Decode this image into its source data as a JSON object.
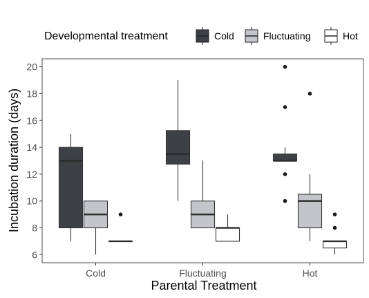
{
  "chart_data": {
    "type": "box",
    "title": "",
    "xlabel": "Parental Treatment",
    "ylabel": "Incubation duration (days)",
    "ylim": [
      5.4,
      20.6
    ],
    "yticks": [
      6,
      8,
      10,
      12,
      14,
      16,
      18,
      20
    ],
    "grid": false,
    "legend": {
      "title": "Developmental treatment",
      "position": "top",
      "entries": [
        "Cold",
        "Fluctuating",
        "Hot"
      ]
    },
    "categories": [
      "Cold",
      "Fluctuating",
      "Hot"
    ],
    "series": [
      {
        "name": "Cold",
        "color": "#3d4145",
        "boxes": [
          {
            "category": "Cold",
            "lower_whisker": 7,
            "q1": 8,
            "median": 13,
            "q3": 14,
            "upper_whisker": 15,
            "outliers": []
          },
          {
            "category": "Fluctuating",
            "lower_whisker": 10,
            "q1": 12.75,
            "median": 13.5,
            "q3": 15.25,
            "upper_whisker": 19,
            "outliers": []
          },
          {
            "category": "Hot",
            "lower_whisker": 13,
            "q1": 13,
            "median": 13,
            "q3": 13.5,
            "upper_whisker": 14,
            "outliers": [
              10,
              12,
              17,
              20
            ]
          }
        ]
      },
      {
        "name": "Fluctuating",
        "color": "#c4c5ca",
        "boxes": [
          {
            "category": "Cold",
            "lower_whisker": 6,
            "q1": 8,
            "median": 9,
            "q3": 10,
            "upper_whisker": 10,
            "outliers": []
          },
          {
            "category": "Fluctuating",
            "lower_whisker": 8,
            "q1": 8,
            "median": 9,
            "q3": 10,
            "upper_whisker": 13,
            "outliers": []
          },
          {
            "category": "Hot",
            "lower_whisker": 7,
            "q1": 8,
            "median": 10,
            "q3": 10.5,
            "upper_whisker": 12,
            "outliers": [
              18
            ]
          }
        ]
      },
      {
        "name": "Hot",
        "color": "#ffffff",
        "boxes": [
          {
            "category": "Cold",
            "lower_whisker": 7,
            "q1": 7,
            "median": 7,
            "q3": 7,
            "upper_whisker": 7,
            "outliers": [
              9
            ]
          },
          {
            "category": "Fluctuating",
            "lower_whisker": 7,
            "q1": 7,
            "median": 8,
            "q3": 8,
            "upper_whisker": 9,
            "outliers": []
          },
          {
            "category": "Hot",
            "lower_whisker": 6,
            "q1": 6.5,
            "median": 7,
            "q3": 7,
            "upper_whisker": 7,
            "outliers": [
              8,
              9
            ]
          }
        ]
      }
    ]
  }
}
